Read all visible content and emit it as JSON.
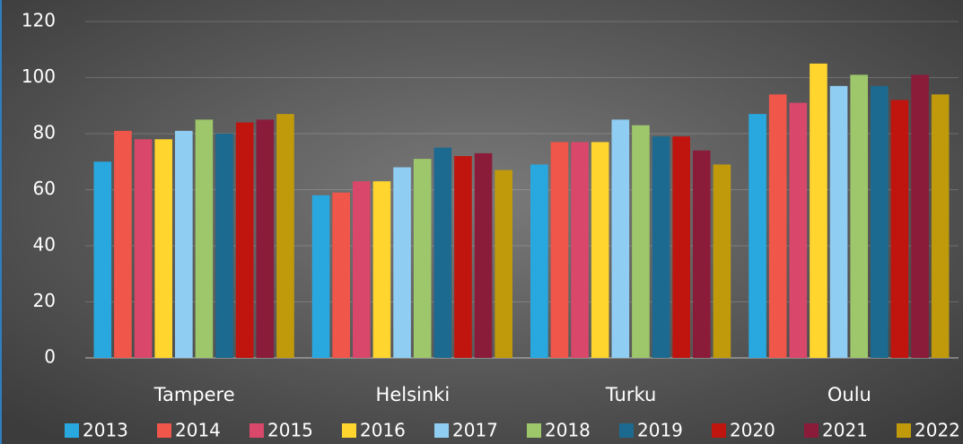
{
  "chart_data": {
    "type": "bar",
    "categories": [
      "Tampere",
      "Helsinki",
      "Turku",
      "Oulu"
    ],
    "series": [
      {
        "name": "2013",
        "color": "#29a8e0",
        "values": [
          70,
          58,
          69,
          87
        ]
      },
      {
        "name": "2014",
        "color": "#f0564a",
        "values": [
          81,
          59,
          77,
          94
        ]
      },
      {
        "name": "2015",
        "color": "#d9476a",
        "values": [
          78,
          63,
          77,
          91
        ]
      },
      {
        "name": "2016",
        "color": "#ffd52e",
        "values": [
          78,
          63,
          77,
          105
        ]
      },
      {
        "name": "2017",
        "color": "#8fcdf2",
        "values": [
          81,
          68,
          85,
          97
        ]
      },
      {
        "name": "2018",
        "color": "#9dc76a",
        "values": [
          85,
          71,
          83,
          101
        ]
      },
      {
        "name": "2019",
        "color": "#1c6a8f",
        "values": [
          80,
          75,
          79,
          97
        ]
      },
      {
        "name": "2020",
        "color": "#c0150f",
        "values": [
          84,
          72,
          79,
          92
        ]
      },
      {
        "name": "2021",
        "color": "#8a1c3a",
        "values": [
          85,
          73,
          74,
          101
        ]
      },
      {
        "name": "2022",
        "color": "#c19a0b",
        "values": [
          87,
          67,
          69,
          94
        ]
      }
    ],
    "ylim": [
      0,
      120
    ],
    "yticks": [
      0,
      20,
      40,
      60,
      80,
      100,
      120
    ],
    "grid": true,
    "legend": "bottom"
  }
}
